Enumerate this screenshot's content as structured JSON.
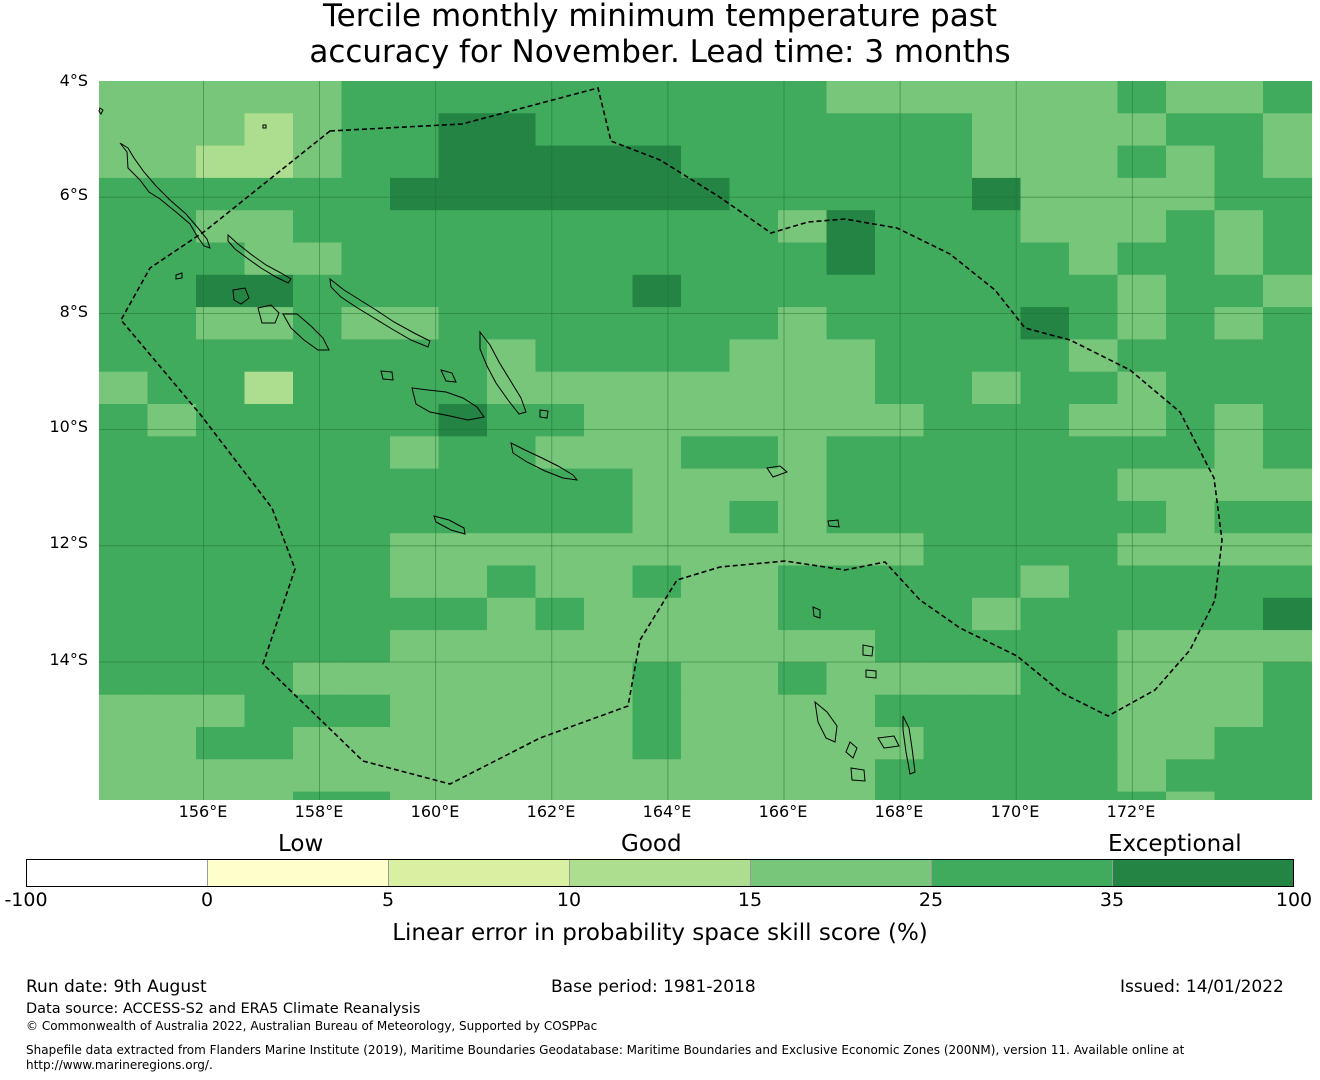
{
  "title": {
    "line1": "Tercile monthly minimum temperature past",
    "line2": "accuracy for November. Lead time: 3 months"
  },
  "map": {
    "lat_labels": [
      "4°S",
      "6°S",
      "8°S",
      "10°S",
      "12°S",
      "14°S"
    ],
    "lon_labels": [
      "156°E",
      "158°E",
      "160°E",
      "162°E",
      "164°E",
      "166°E",
      "168°E",
      "170°E",
      "172°E"
    ],
    "lon_range": [
      154.2,
      174.0
    ],
    "lat_range": [
      -4.0,
      -16.3
    ],
    "grid_lines": "on",
    "cell_size_deg": 0.83,
    "skill_levels": [
      "-100 to 0",
      "0 to 5",
      "5 to 10",
      "10 to 15",
      "15 to 25",
      "25 to 35",
      "35 to 100"
    ],
    "grid_rows": [
      "4444455555555554444445445",
      "4443455665555555554444554",
      "4433455666665555554445454",
      "5555556666666555556444455",
      "5544555555555546555444545",
      "5554455555555556555545545",
      "5566555555565555555554554",
      "5544544555555545555654545",
      "5555555545555444555545555",
      "4553555544444444554554555",
      "5455555655444444455544545",
      "5555554554445545555555545",
      "5555555555544445555554444",
      "5555555555544545555555455",
      "5555554444444444455554444",
      "5555554454454455555455555",
      "5555555545444455554555556",
      "5555554444444444555554444",
      "5555444444454454444554445",
      "4445554444454444555554445",
      "4455444444454444455554455",
      "4444444444444444555554555",
      "4444554444444444555555455",
      "4444554444444444555555555",
      "4444444444444444455555556",
      "4444544444444444555555555",
      "4444444444444444555555555"
    ],
    "colors": {
      "level_0": "#ffffff",
      "level_1": "#ffffcc",
      "level_2": "#d9f0a3",
      "level_3": "#addd8e",
      "level_4": "#78c679",
      "level_5": "#41ab5d",
      "level_6": "#238443"
    },
    "boundary_style": "dashed black line (EEZ)",
    "coastline_style": "thin black outline"
  },
  "colorbar": {
    "band_labels": [
      "Low",
      "Good",
      "Exceptional"
    ],
    "ticks": [
      "-100",
      "0",
      "5",
      "10",
      "15",
      "25",
      "35",
      "100"
    ],
    "colors": [
      "#ffffff",
      "#ffffcc",
      "#d9f0a3",
      "#addd8e",
      "#78c679",
      "#41ab5d",
      "#238443"
    ],
    "title": "Linear error in probability space skill score (%)"
  },
  "footer": {
    "run_date": "Run date: 9th August",
    "base_period": "Base period: 1981-2018",
    "issued": "Issued: 14/01/2022",
    "data_source": "Data source: ACCESS-S2 and ERA5 Climate Reanalysis",
    "copyright": "© Commonwealth of Australia 2022, Australian Bureau of Meteorology, Supported by COSPPac",
    "shapefile_line1": "Shapefile data extracted from Flanders Marine Institute (2019), Maritime Boundaries Geodatabase: Maritime Boundaries and Exclusive Economic Zones (200NM), version 11. Available online at",
    "shapefile_line2": "http://www.marineregions.org/."
  }
}
